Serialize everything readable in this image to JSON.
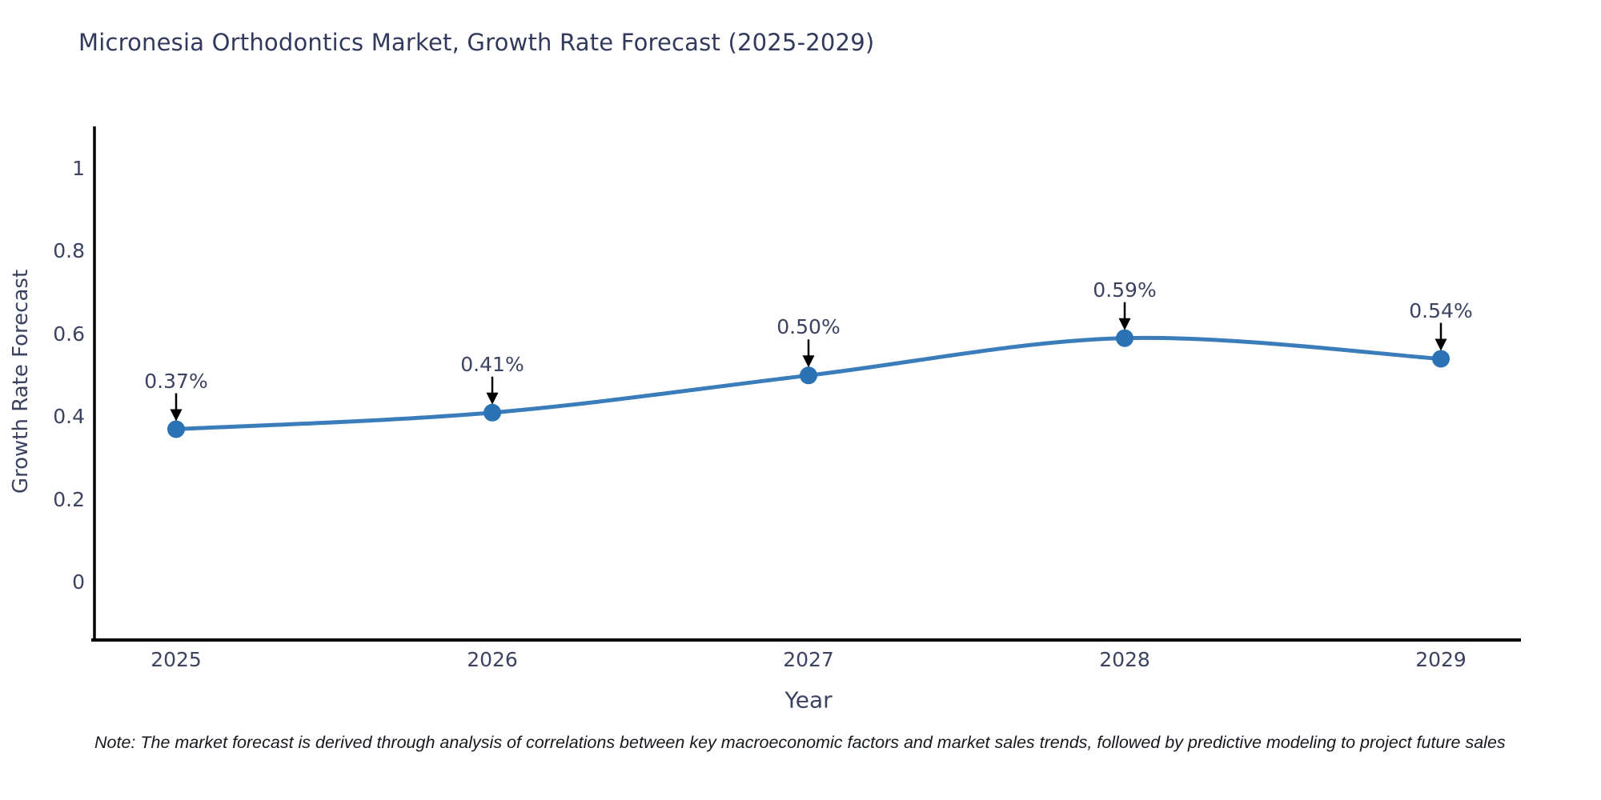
{
  "page": {
    "note": "Note: The market forecast is derived through analysis of correlations between key macroeconomic factors and market sales trends, followed by predictive modeling to project future sales"
  },
  "chart_data": {
    "type": "line",
    "title": "Micronesia Orthodontics Market, Growth Rate Forecast (2025-2029)",
    "xlabel": "Year",
    "ylabel": "Growth Rate Forecast",
    "categories": [
      "2025",
      "2026",
      "2027",
      "2028",
      "2029"
    ],
    "values": [
      0.37,
      0.41,
      0.5,
      0.59,
      0.54
    ],
    "point_labels": [
      "0.37%",
      "0.41%",
      "0.50%",
      "0.59%",
      "0.54%"
    ],
    "yticks": [
      0,
      0.2,
      0.4,
      0.6,
      0.8,
      1
    ],
    "ytick_labels": [
      "0",
      "0.2",
      "0.4",
      "0.6",
      "0.8",
      "1"
    ],
    "ylim": [
      -0.15,
      1.1
    ],
    "grid": false,
    "legend": "none",
    "smooth": true,
    "marker": "circle",
    "annotation_style": "value label above point with downward black arrow"
  },
  "colors": {
    "background": "#ffffff",
    "title_text": "#323a5c",
    "tick_text": "#3b4360",
    "note_text": "#15181d",
    "axis": "#000000",
    "line": "#3b7cbb",
    "marker": "#2a72b4",
    "arrow": "#000000"
  }
}
